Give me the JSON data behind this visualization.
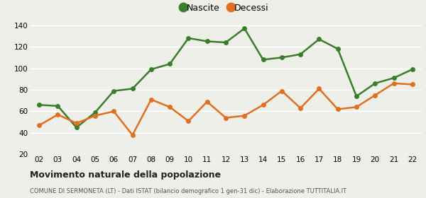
{
  "years": [
    "02",
    "03",
    "04",
    "05",
    "06",
    "07",
    "08",
    "09",
    "10",
    "11",
    "12",
    "13",
    "14",
    "15",
    "16",
    "17",
    "18",
    "19",
    "20",
    "21",
    "22"
  ],
  "nascite": [
    66,
    65,
    45,
    59,
    79,
    81,
    99,
    104,
    128,
    125,
    124,
    137,
    108,
    110,
    113,
    127,
    118,
    74,
    86,
    91,
    99
  ],
  "decessi": [
    47,
    57,
    49,
    56,
    60,
    38,
    71,
    64,
    51,
    69,
    54,
    56,
    66,
    79,
    63,
    81,
    62,
    64,
    75,
    86,
    85
  ],
  "nascite_color": "#3a7d2c",
  "decessi_color": "#e07020",
  "bg_color": "#efefea",
  "grid_color": "#ffffff",
  "title": "Movimento naturale della popolazione",
  "subtitle": "COMUNE DI SERMONETA (LT) - Dati ISTAT (bilancio demografico 1 gen-31 dic) - Elaborazione TUTTITALIA.IT",
  "legend_nascite": "Nascite",
  "legend_decessi": "Decessi",
  "ylim": [
    20,
    145
  ],
  "yticks": [
    20,
    40,
    60,
    80,
    100,
    120,
    140
  ],
  "marker_size": 5,
  "line_width": 1.8
}
